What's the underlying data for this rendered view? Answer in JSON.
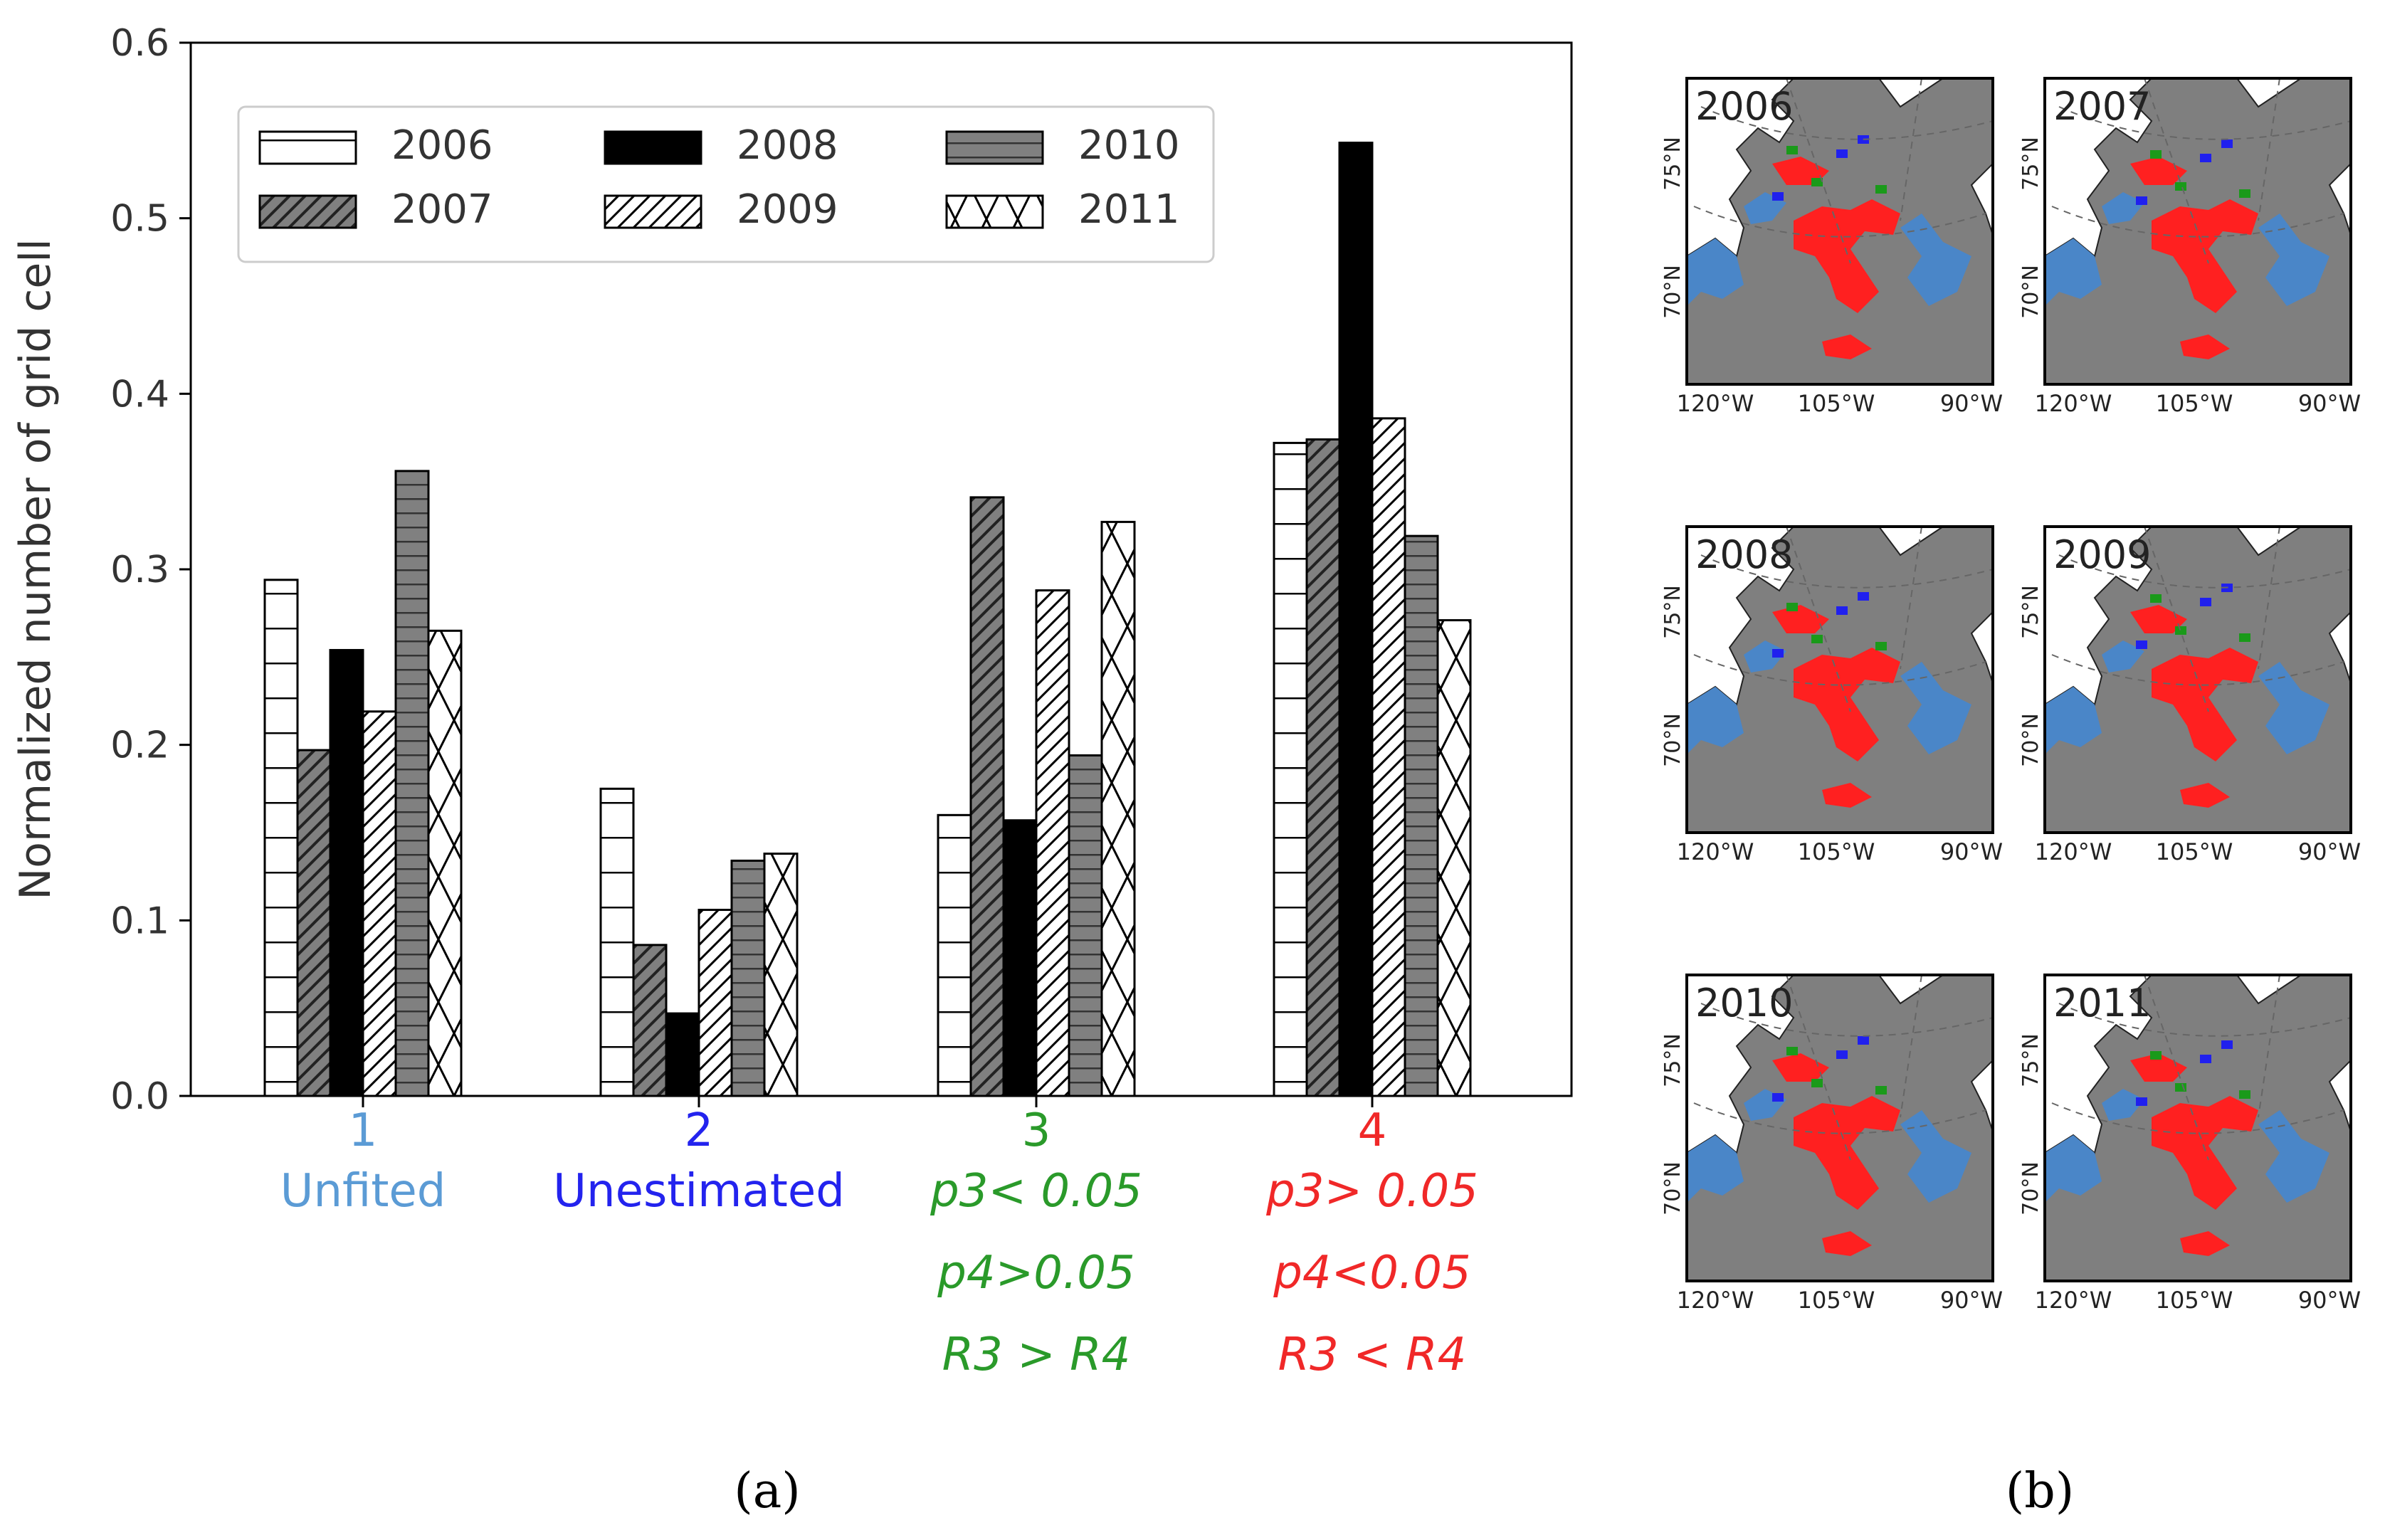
{
  "chart_data": {
    "type": "bar",
    "ylabel": "Normalized number of grid cell",
    "ylim": [
      0,
      0.6
    ],
    "yticks": [
      "0.0",
      "0.1",
      "0.2",
      "0.3",
      "0.4",
      "0.5",
      "0.6"
    ],
    "categories": [
      {
        "number": "1",
        "lines": [
          "Unfited"
        ],
        "color": "#5b9bd5"
      },
      {
        "number": "2",
        "lines": [
          "Unestimated"
        ],
        "color": "#2323ee"
      },
      {
        "number": "3",
        "lines": [
          "p3< 0.05",
          "p4>0.05",
          "R3 > R4"
        ],
        "color": "#2a9a2a"
      },
      {
        "number": "4",
        "lines": [
          "p3> 0.05",
          "p4<0.05",
          "R3 < R4"
        ],
        "color": "#f02828"
      }
    ],
    "series": [
      {
        "name": "2006",
        "pattern": "hlines-white",
        "values": [
          0.294,
          0.175,
          0.16,
          0.372
        ]
      },
      {
        "name": "2007",
        "pattern": "diag-gray",
        "values": [
          0.197,
          0.086,
          0.341,
          0.374
        ]
      },
      {
        "name": "2008",
        "pattern": "solid-black",
        "values": [
          0.254,
          0.047,
          0.157,
          0.543
        ]
      },
      {
        "name": "2009",
        "pattern": "diag-white",
        "values": [
          0.219,
          0.106,
          0.288,
          0.386
        ]
      },
      {
        "name": "2010",
        "pattern": "hlines-gray",
        "values": [
          0.356,
          0.134,
          0.194,
          0.319
        ]
      },
      {
        "name": "2011",
        "pattern": "xhatch-white",
        "values": [
          0.265,
          0.138,
          0.327,
          0.271
        ]
      }
    ],
    "legend_position": "top-left"
  },
  "maps": {
    "years": [
      "2006",
      "2007",
      "2008",
      "2009",
      "2010",
      "2011"
    ],
    "lat_labels": [
      "75°N",
      "70°N"
    ],
    "lon_labels": [
      "120°W",
      "105°W",
      "90°W"
    ]
  },
  "panel_labels": {
    "a": "(a)",
    "b": "(b)"
  }
}
